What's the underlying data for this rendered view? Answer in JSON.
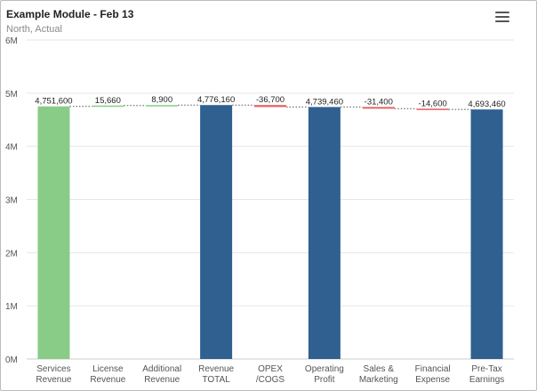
{
  "header": {
    "title": "Example Module - Feb 13",
    "subtitle": "North, Actual"
  },
  "colors": {
    "increase": "#88cc88",
    "decrease": "#e85c5c",
    "total": "#2f6090",
    "grid": "#e6e6e6"
  },
  "chart_data": {
    "type": "bar",
    "subtype": "waterfall",
    "title": "Example Module - Feb 13",
    "subtitle": "North, Actual",
    "categories": [
      [
        "Services",
        "Revenue"
      ],
      [
        "License",
        "Revenue"
      ],
      [
        "Additional",
        "Revenue"
      ],
      [
        "Revenue",
        "TOTAL"
      ],
      [
        "OPEX",
        "/COGS"
      ],
      [
        "Operating",
        "Profit"
      ],
      [
        "Sales &",
        "Marketing"
      ],
      [
        "Financial",
        "Expense"
      ],
      [
        "Pre-Tax",
        "Earnings"
      ]
    ],
    "values": [
      4751600,
      15660,
      8900,
      4776160,
      -36700,
      4739460,
      -31400,
      -14600,
      4693460
    ],
    "labels": [
      "4,751,600",
      "15,660",
      "8,900",
      "4,776,160",
      "-36,700",
      "4,739,460",
      "-31,400",
      "-14,600",
      "4,693,460"
    ],
    "kinds": [
      "increase",
      "increase",
      "increase",
      "total",
      "decrease",
      "total",
      "decrease",
      "decrease",
      "total"
    ],
    "ylim": [
      0,
      6000000
    ],
    "yticks": [
      0,
      1000000,
      2000000,
      3000000,
      4000000,
      5000000,
      6000000
    ],
    "ytick_labels": [
      "0M",
      "1M",
      "2M",
      "3M",
      "4M",
      "5M",
      "6M"
    ],
    "grid": true,
    "legend": "none"
  }
}
